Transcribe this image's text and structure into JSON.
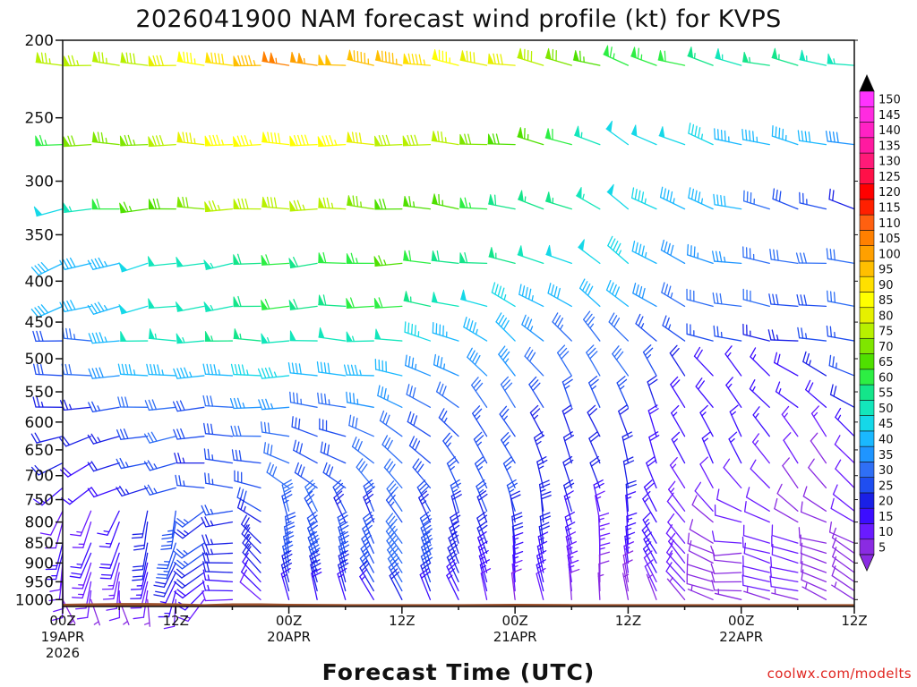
{
  "chart_data": {
    "type": "wind-barb-time-height",
    "title": "2026041900 NAM forecast wind profile (kt) for KVPS",
    "xlabel": "Forecast Time (UTC)",
    "ylabel": "",
    "x_unit": "forecast hour",
    "xlim": [
      0,
      84
    ],
    "ylim": [
      1020,
      200
    ],
    "x_ticks": [
      {
        "hour": 0,
        "lines": [
          "00Z",
          "19APR",
          "2026"
        ]
      },
      {
        "hour": 12,
        "lines": [
          "12Z"
        ]
      },
      {
        "hour": 24,
        "lines": [
          "00Z",
          "20APR"
        ]
      },
      {
        "hour": 36,
        "lines": [
          "12Z"
        ]
      },
      {
        "hour": 48,
        "lines": [
          "00Z",
          "21APR"
        ]
      },
      {
        "hour": 60,
        "lines": [
          "12Z"
        ]
      },
      {
        "hour": 72,
        "lines": [
          "00Z",
          "22APR"
        ]
      },
      {
        "hour": 84,
        "lines": [
          "12Z"
        ]
      }
    ],
    "y_ticks": [
      "200",
      "250",
      "300",
      "350",
      "400",
      "450",
      "500",
      "550",
      "600",
      "650",
      "700",
      "750",
      "800",
      "850",
      "900",
      "950",
      "1000"
    ],
    "barb_pressure_levels": [
      215,
      270,
      325,
      380,
      430,
      475,
      525,
      575,
      625,
      675,
      725,
      775,
      800,
      850,
      875,
      900,
      925,
      950,
      975,
      1000
    ],
    "forecast_hours_every": 3,
    "surface_pressure_by_hour": [
      [
        0,
        1012
      ],
      [
        3,
        1011
      ],
      [
        6,
        1010
      ],
      [
        9,
        1010
      ],
      [
        12,
        1011
      ],
      [
        15,
        1013
      ],
      [
        18,
        1011
      ],
      [
        21,
        1011
      ],
      [
        24,
        1012
      ],
      [
        30,
        1013
      ],
      [
        36,
        1013
      ],
      [
        42,
        1013
      ],
      [
        48,
        1012
      ],
      [
        54,
        1013
      ],
      [
        60,
        1013
      ],
      [
        66,
        1013
      ],
      [
        72,
        1013
      ],
      [
        78,
        1013
      ],
      [
        84,
        1013
      ]
    ],
    "wind_profile": {
      "description": "Representative wind (speed kt, direction deg) at each pressure level, sampled at forecast hours; values interpolated across time.",
      "level_keyframes": {
        "215": [
          [
            0,
            75,
            275
          ],
          [
            12,
            80,
            275
          ],
          [
            24,
            105,
            275
          ],
          [
            36,
            95,
            280
          ],
          [
            48,
            80,
            280
          ],
          [
            60,
            65,
            290
          ],
          [
            72,
            55,
            285
          ],
          [
            84,
            55,
            280
          ]
        ],
        "270": [
          [
            0,
            65,
            270
          ],
          [
            12,
            80,
            270
          ],
          [
            24,
            90,
            270
          ],
          [
            36,
            80,
            270
          ],
          [
            48,
            70,
            275
          ],
          [
            60,
            50,
            300
          ],
          [
            72,
            45,
            285
          ],
          [
            84,
            40,
            280
          ]
        ],
        "325": [
          [
            0,
            50,
            260
          ],
          [
            12,
            70,
            270
          ],
          [
            24,
            80,
            270
          ],
          [
            36,
            70,
            275
          ],
          [
            48,
            60,
            280
          ],
          [
            60,
            50,
            305
          ],
          [
            72,
            40,
            285
          ],
          [
            84,
            20,
            290
          ]
        ],
        "380": [
          [
            0,
            40,
            250
          ],
          [
            12,
            50,
            260
          ],
          [
            24,
            60,
            265
          ],
          [
            36,
            65,
            270
          ],
          [
            48,
            55,
            280
          ],
          [
            60,
            45,
            310
          ],
          [
            72,
            35,
            280
          ],
          [
            84,
            30,
            275
          ]
        ],
        "430": [
          [
            0,
            40,
            250
          ],
          [
            12,
            50,
            260
          ],
          [
            24,
            60,
            265
          ],
          [
            36,
            60,
            270
          ],
          [
            48,
            45,
            295
          ],
          [
            60,
            40,
            310
          ],
          [
            72,
            30,
            280
          ],
          [
            84,
            30,
            275
          ]
        ],
        "475": [
          [
            0,
            30,
            270
          ],
          [
            12,
            55,
            270
          ],
          [
            24,
            55,
            270
          ],
          [
            36,
            50,
            275
          ],
          [
            48,
            40,
            310
          ],
          [
            60,
            30,
            320
          ],
          [
            72,
            25,
            280
          ],
          [
            84,
            25,
            275
          ]
        ],
        "525": [
          [
            0,
            30,
            270
          ],
          [
            12,
            45,
            270
          ],
          [
            24,
            45,
            270
          ],
          [
            36,
            40,
            280
          ],
          [
            48,
            35,
            320
          ],
          [
            60,
            30,
            330
          ],
          [
            72,
            15,
            320
          ],
          [
            84,
            25,
            290
          ]
        ],
        "575": [
          [
            0,
            25,
            265
          ],
          [
            12,
            30,
            265
          ],
          [
            24,
            35,
            270
          ],
          [
            36,
            35,
            290
          ],
          [
            48,
            30,
            330
          ],
          [
            60,
            25,
            340
          ],
          [
            72,
            15,
            320
          ],
          [
            84,
            20,
            300
          ]
        ],
        "625": [
          [
            0,
            20,
            250
          ],
          [
            12,
            30,
            260
          ],
          [
            24,
            30,
            280
          ],
          [
            36,
            30,
            300
          ],
          [
            48,
            25,
            330
          ],
          [
            60,
            20,
            340
          ],
          [
            72,
            15,
            330
          ],
          [
            84,
            15,
            320
          ]
        ],
        "675": [
          [
            0,
            20,
            240
          ],
          [
            12,
            25,
            260
          ],
          [
            24,
            30,
            290
          ],
          [
            36,
            30,
            310
          ],
          [
            48,
            25,
            335
          ],
          [
            60,
            20,
            345
          ],
          [
            72,
            15,
            330
          ],
          [
            84,
            10,
            320
          ]
        ],
        "725": [
          [
            0,
            15,
            230
          ],
          [
            12,
            25,
            260
          ],
          [
            24,
            30,
            300
          ],
          [
            36,
            30,
            320
          ],
          [
            48,
            25,
            340
          ],
          [
            60,
            20,
            345
          ],
          [
            72,
            10,
            320
          ],
          [
            84,
            10,
            320
          ]
        ],
        "775": [
          [
            0,
            10,
            210
          ],
          [
            12,
            25,
            190
          ],
          [
            24,
            30,
            340
          ],
          [
            36,
            30,
            330
          ],
          [
            48,
            25,
            345
          ],
          [
            60,
            20,
            350
          ],
          [
            72,
            10,
            300
          ],
          [
            84,
            10,
            310
          ]
        ],
        "800": [
          [
            0,
            10,
            200
          ],
          [
            12,
            25,
            190
          ],
          [
            24,
            25,
            340
          ],
          [
            36,
            25,
            330
          ],
          [
            48,
            20,
            350
          ],
          [
            60,
            15,
            350
          ],
          [
            72,
            10,
            290
          ],
          [
            84,
            10,
            300
          ]
        ],
        "850": [
          [
            0,
            15,
            200
          ],
          [
            12,
            25,
            195
          ],
          [
            24,
            25,
            350
          ],
          [
            36,
            30,
            330
          ],
          [
            48,
            20,
            350
          ],
          [
            60,
            15,
            355
          ],
          [
            72,
            10,
            280
          ],
          [
            84,
            10,
            290
          ]
        ],
        "875": [
          [
            0,
            15,
            200
          ],
          [
            12,
            25,
            195
          ],
          [
            24,
            25,
            350
          ],
          [
            36,
            30,
            330
          ],
          [
            48,
            20,
            350
          ],
          [
            60,
            15,
            355
          ],
          [
            72,
            10,
            270
          ],
          [
            84,
            10,
            300
          ]
        ],
        "900": [
          [
            0,
            10,
            190
          ],
          [
            12,
            20,
            200
          ],
          [
            24,
            25,
            350
          ],
          [
            36,
            30,
            330
          ],
          [
            48,
            15,
            350
          ],
          [
            60,
            15,
            355
          ],
          [
            72,
            10,
            280
          ],
          [
            84,
            10,
            300
          ]
        ],
        "925": [
          [
            0,
            10,
            190
          ],
          [
            12,
            20,
            200
          ],
          [
            24,
            25,
            350
          ],
          [
            36,
            30,
            330
          ],
          [
            48,
            15,
            350
          ],
          [
            60,
            15,
            355
          ],
          [
            72,
            10,
            270
          ],
          [
            84,
            10,
            300
          ]
        ],
        "950": [
          [
            0,
            10,
            180
          ],
          [
            12,
            15,
            200
          ],
          [
            24,
            20,
            350
          ],
          [
            36,
            30,
            330
          ],
          [
            48,
            15,
            350
          ],
          [
            60,
            10,
            355
          ],
          [
            72,
            10,
            270
          ],
          [
            84,
            10,
            300
          ]
        ],
        "975": [
          [
            0,
            10,
            180
          ],
          [
            12,
            15,
            190
          ],
          [
            24,
            20,
            350
          ],
          [
            36,
            25,
            330
          ],
          [
            48,
            15,
            350
          ],
          [
            60,
            10,
            355
          ],
          [
            72,
            10,
            270
          ],
          [
            84,
            10,
            300
          ]
        ],
        "1000": [
          [
            0,
            5,
            150
          ],
          [
            12,
            10,
            180
          ],
          [
            24,
            15,
            350
          ],
          [
            36,
            20,
            330
          ],
          [
            48,
            10,
            350
          ],
          [
            60,
            5,
            355
          ],
          [
            72,
            5,
            280
          ],
          [
            84,
            5,
            300
          ]
        ]
      }
    },
    "colorbar": {
      "unit": "kt",
      "labels": [
        "5",
        "10",
        "15",
        "20",
        "25",
        "30",
        "35",
        "40",
        "45",
        "50",
        "55",
        "60",
        "65",
        "70",
        "75",
        "80",
        "85",
        "90",
        "95",
        "100",
        "105",
        "110",
        "115",
        "120",
        "125",
        "130",
        "135",
        "140",
        "145",
        "150"
      ],
      "colors": [
        "#8a2be2",
        "#6a1bff",
        "#3c0dff",
        "#1a20e6",
        "#1f4ef0",
        "#2f6ff5",
        "#1f95ff",
        "#1ab8ff",
        "#15d8e8",
        "#13e6bb",
        "#14e58a",
        "#2dee43",
        "#4fe000",
        "#7fe600",
        "#b8f000",
        "#e6f000",
        "#ffff00",
        "#ffe000",
        "#ffbf00",
        "#ffa000",
        "#ff8000",
        "#ff6010",
        "#ff2000",
        "#ff0000",
        "#ff1048",
        "#ff1a78",
        "#ff1aa0",
        "#ff22c4",
        "#ff2be0",
        "#ff33ff"
      ],
      "under_color": "#8a2be2",
      "over_color": "#000000"
    },
    "ground_color": "#9a4f2a",
    "credit": "coolwx.com/modelts",
    "grid": false
  }
}
